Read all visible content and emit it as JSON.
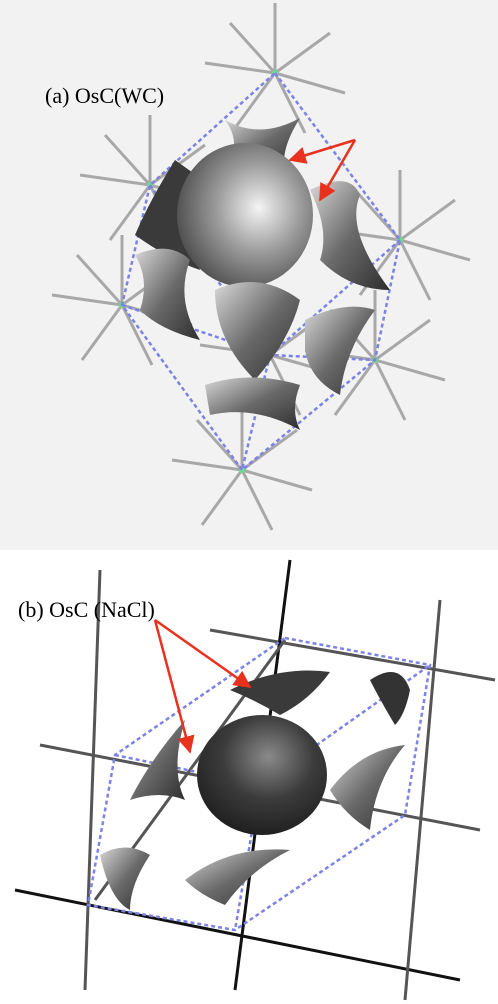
{
  "panels": [
    {
      "label": "(a) OsC(WC)"
    },
    {
      "label": "(b) OsC (NaCl)"
    }
  ]
}
